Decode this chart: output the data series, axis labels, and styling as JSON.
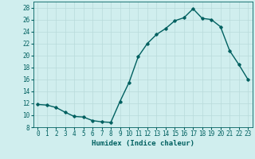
{
  "x": [
    0,
    1,
    2,
    3,
    4,
    5,
    6,
    7,
    8,
    9,
    10,
    11,
    12,
    13,
    14,
    15,
    16,
    17,
    18,
    19,
    20,
    21,
    22,
    23
  ],
  "y": [
    11.8,
    11.7,
    11.3,
    10.5,
    9.8,
    9.7,
    9.1,
    8.9,
    8.8,
    12.3,
    15.5,
    19.8,
    22.0,
    23.5,
    24.5,
    25.8,
    26.3,
    27.8,
    26.2,
    26.0,
    24.8,
    20.8,
    18.5,
    16.0
  ],
  "line_color": "#006060",
  "marker": "D",
  "marker_size": 1.8,
  "bg_color": "#d0eeee",
  "grid_color": "#b8dada",
  "xlabel": "Humidex (Indice chaleur)",
  "xlim": [
    -0.5,
    23.5
  ],
  "ylim": [
    8,
    29
  ],
  "yticks": [
    8,
    10,
    12,
    14,
    16,
    18,
    20,
    22,
    24,
    26,
    28
  ],
  "xticks": [
    0,
    1,
    2,
    3,
    4,
    5,
    6,
    7,
    8,
    9,
    10,
    11,
    12,
    13,
    14,
    15,
    16,
    17,
    18,
    19,
    20,
    21,
    22,
    23
  ],
  "xlabel_fontsize": 6.5,
  "tick_fontsize": 5.5,
  "line_width": 1.0
}
